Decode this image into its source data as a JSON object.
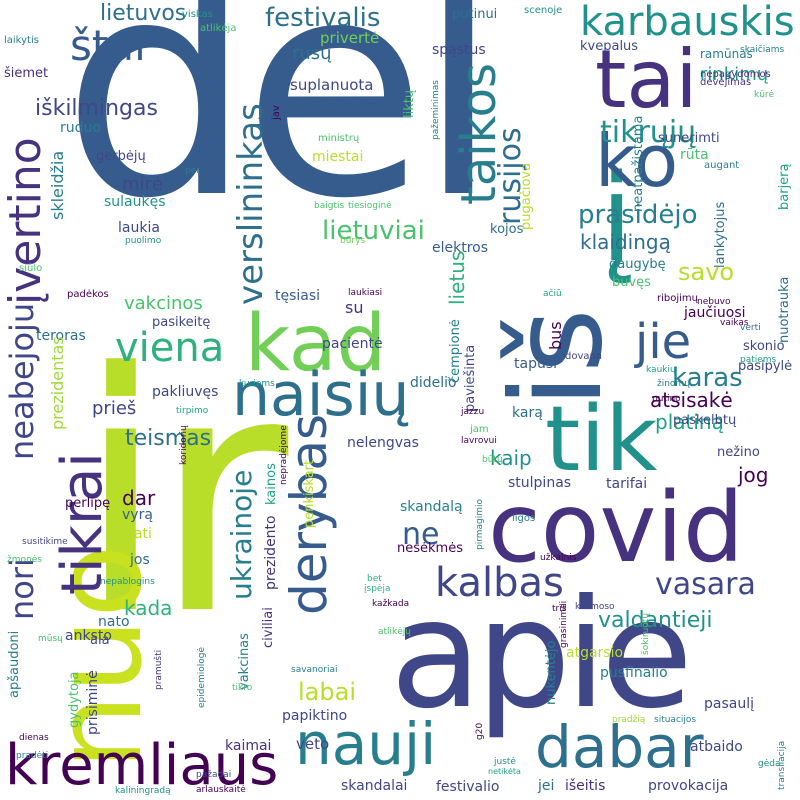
{
  "words": {
    "del": "dėl",
    "ir": "ir",
    "apie": "apie",
    "is": "iš",
    "nuo": "nuo",
    "kad": "kad",
    "i": "į",
    "covid": "covid",
    "tik": "tik",
    "tai": "tai",
    "ko": "ko",
    "dabar": "dabar",
    "nauji": "nauji",
    "naisiu": "naisių",
    "kremliaus": "kremliaus",
    "tikrai": "tikrai",
    "derybas": "derybas",
    "kalbas": "kalbas",
    "taikos": "taikos",
    "ivertino": "įvertino",
    "verslininkas": "verslininkas",
    "karbauskis": "karbauskis",
    "stai": "štai",
    "festivalis": "festivalis",
    "tikruju": "tikrųjų",
    "rusijos": "rusijos",
    "jie": "jie",
    "viena": "viena",
    "vasara": "vasara",
    "lietuviai": "lietuviai",
    "prasidejo": "prasidėjo",
    "noriNeabejoju": "nori",
    "neabejoju": "neabejoju",
    "ukrainoje": "ukrainoje",
    "karas": "karas",
    "ne": "ne",
    "labai": "labai",
    "lietuvos": "lietuvos",
    "iskilmingas": "iškilmingas",
    "valdantieji": "valdantieji",
    "teismas": "teismas",
    "kaip": "kaip",
    "platina": "platiną",
    "savo": "savo",
    "rinkimu": "rinkimų",
    "klaidinga": "klaidingą",
    "atsisake": "atsisakė",
    "jog": "jog",
    "dar": "dar",
    "kada": "kada",
    "rusu": "rusų",
    "privertė": "privertė",
    "suplanuota": "suplanuota",
    "ruduo": "ruduo",
    "skleidzia": "skleidžia",
    "mire": "mirė",
    "sulaukes": "sulaukęs",
    "laukia": "laukia",
    "gerbeju": "gerbėjų",
    "miestai": "miestai",
    "elektros": "elektros",
    "vakcinos": "vakcinos",
    "pasikeite": "pasikeitę",
    "paklius": "pakliuvęs",
    "pries": "prieš",
    "su": "su",
    "teroras": "teroras",
    "prezidentas": "prezidentas",
    "tesiasi": "tęsiasi",
    "pacientė": "pacientė",
    "didelio": "didelio",
    "tapusi": "tapusi",
    "bus": "bus",
    "perlipe": "perlipę",
    "vyra": "vyrą",
    "pati": "pati",
    "jos": "jos",
    "nato": "nato",
    "anksto": "anksto",
    "ala": "ala",
    "veto": "veto",
    "kaimai": "kaimai",
    "papiktino": "papiktino",
    "skandalai": "skandalai",
    "festivalio": "festivalio",
    "jei": "jei",
    "iseitis": "išeitis",
    "provokacija": "provokacija",
    "atbaido": "atbaido",
    "pasauli": "pasaulį",
    "pusfinalio": "pusfinalio",
    "atgarsio": "atgarsio",
    "nukentejo": "nukentėjo",
    "tarifai": "tarifai",
    "stulpinas": "stulpinas",
    "skandala": "skandalą",
    "nesekmes": "nesėkmės",
    "nelengvas": "nelengvas",
    "kara": "karą",
    "paskelbtu": "paskelbtų",
    "nezino": "nežino",
    "skonio": "skonio",
    "pasipyle": "pasipylė",
    "jauciuosi": "jaučiuosi",
    "daugybe": "daugybę",
    "lankytojus": "lankytojus",
    "sunerimti": "sunerimti",
    "neatpazistama": "neatpažįstama",
    "kvepalus": "kvepalus",
    "rūta": "rūta",
    "putinui": "putinui",
    "spastus": "spąstus",
    "liktu": "liktų",
    "pugaciova": "pugačiova",
    "vakcinas": "vakcinas",
    "prezidento": "prezidento",
    "civiliai": "civiliai",
    "kainos": "kainos",
    "lietus": "lietus",
    "cempione": "čempionė",
    "paviesinta": "paviešinta",
    "buves": "buvęs",
    "kojos": "kojos",
    "nuotrauka": "nuotrauka",
    "barjera": "barjerą",
    "gydytoja": "gydytoja",
    "prisimine": "prisiminė",
    "apsaudoni": "apšaudoni",
    "ramunas": "ramūnas",
    "skaiciams": "skaičiams",
    "nepagydomos": "nepagydomos",
    "devejimas": "dėvėjimas",
    "kure": "kūrė",
    "augant": "augant",
    "viskas": "viskas",
    "scenoje": "scenoje",
    "atlikeja": "atlikėja",
    "laikytis": "laikytis",
    "siemet": "šiemet",
    "jav": "jav",
    "ministru": "ministrų",
    "pazeminimas": "pažeminimas",
    "per": "per",
    "baigtis": "baigtis",
    "tiesiogine": "tiesioginė",
    "puolimo": "puolimo",
    "burys": "būrys",
    "siulo": "siūlo",
    "padekos": "padėkos",
    "laukiasi": "laukiasi",
    "aciu": "ačiū",
    "nebuvo": "nebuvo",
    "ribojimu": "ribojimų",
    "vaikas": "vaikas",
    "verti": "verti",
    "patiems": "patiems",
    "dovana": "dovana",
    "kaukiu": "kaukių",
    "zinomu": "žinomų",
    "putino": "putino",
    "kuriems": "kuriems",
    "tirpimo": "tirpimo",
    "jazzu": "jazzu",
    "jam": "jam",
    "lavrovui": "lavrovui",
    "koridoriu": "koridorių",
    "nepradejome": "nepradėjome",
    "penkiskart": "penkiskart",
    "butu": "būtų",
    "ligos": "ligos",
    "pirmagimio": "pirmagimio",
    "uzkalnis": "užkalnis",
    "susitikime": "susitikime",
    "zmones": "žmonės",
    "nepablogins": "nepablogins",
    "ispeja": "įspėja",
    "kazkada": "kažkada",
    "bet": "bet",
    "tris": "trīs",
    "kosmoso": "kosmoso",
    "grasinimai": "grasinimai",
    "sokiruotu": "šokiruotų",
    "musu": "mūsų",
    "atlikeju": "atlikėjų",
    "pramusti": "pramušti",
    "epidemiologe": "epidemiologė",
    "tikro": "tikro",
    "savanoriai": "savanoriai",
    "praduu": "pradžią",
    "situacijos": "situacijos",
    "transliacija": "transliacija",
    "geda": "gėda",
    "juste": "justė",
    "netiketa": "netikėta",
    "g20": "g20",
    "dienas": "dienas",
    "pradeti": "pradėti",
    "kaliningradą": "kaliningradą",
    "pazadai": "pažadai",
    "arlauskaite": "arlauskaitė"
  }
}
